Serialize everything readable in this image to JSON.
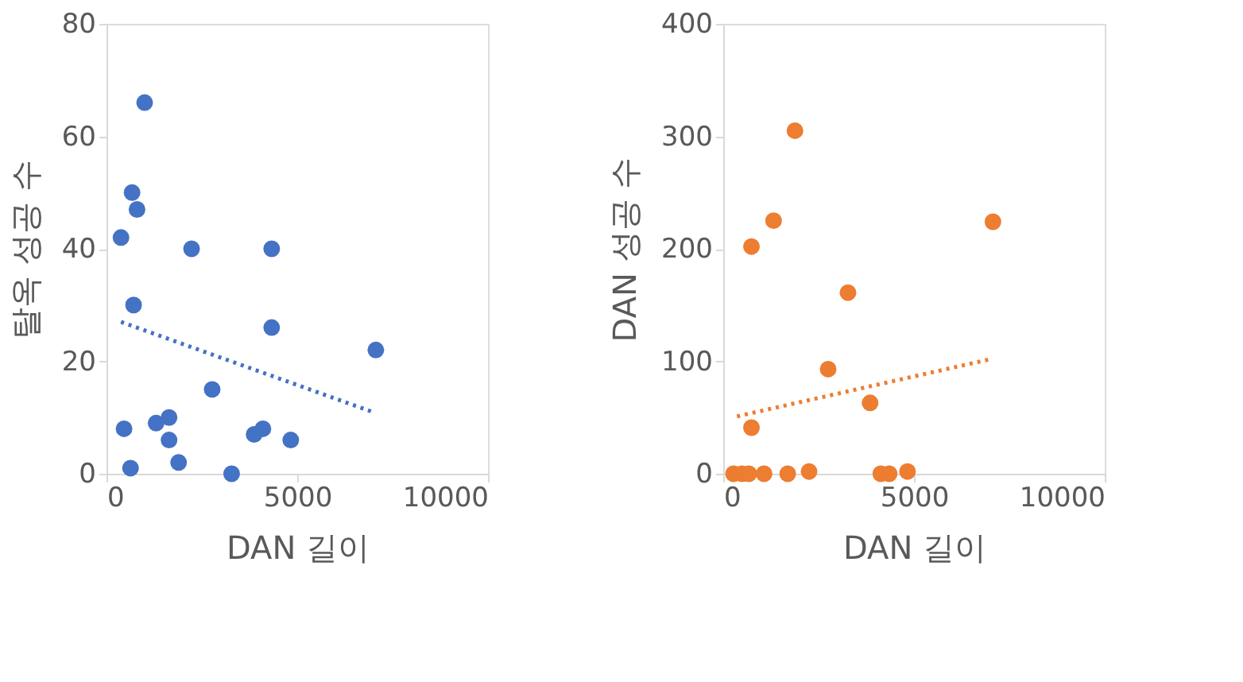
{
  "chart_data": [
    {
      "type": "scatter",
      "xlabel": "DAN 길이",
      "ylabel": "탈옥 성공 수",
      "xlim": [
        0,
        10000
      ],
      "xticks": [
        0,
        5000,
        10000
      ],
      "ylim": [
        0,
        80
      ],
      "yticks": [
        0,
        20,
        40,
        60,
        80
      ],
      "grid": false,
      "series": [
        {
          "color": "#4472c4",
          "x": [
            1000,
            670,
            800,
            380,
            2230,
            4330,
            710,
            4330,
            7060,
            2770,
            1640,
            1300,
            460,
            1640,
            4100,
            3870,
            4830,
            1890,
            630,
            3280
          ],
          "values": [
            66,
            50,
            47,
            42,
            40,
            40,
            30,
            26,
            22,
            15,
            10,
            9,
            8,
            6,
            8,
            7,
            6,
            2,
            1,
            0
          ]
        },
        {
          "type": "line",
          "line_style": "dotted",
          "marker": "none",
          "color": "#4472c4",
          "x": [
            380,
            6970
          ],
          "values": [
            27,
            11
          ]
        }
      ]
    },
    {
      "type": "scatter",
      "xlabel": "DAN 길이",
      "ylabel": "DAN 성공 수",
      "xlim": [
        0,
        10000
      ],
      "xticks": [
        0,
        5000,
        10000
      ],
      "ylim": [
        0,
        400
      ],
      "yticks": [
        0,
        100,
        200,
        300,
        400
      ],
      "grid": false,
      "series": [
        {
          "color": "#ed7d31",
          "x": [
            1880,
            1320,
            740,
            7070,
            3270,
            2750,
            3850,
            740,
            270,
            490,
            670,
            1070,
            1690,
            2250,
            4130,
            4350,
            4830
          ],
          "values": [
            305,
            225,
            202,
            224,
            161,
            93,
            63,
            41,
            0,
            0,
            0,
            0,
            0,
            2,
            0,
            0,
            2
          ]
        },
        {
          "type": "line",
          "line_style": "dotted",
          "marker": "none",
          "color": "#ed7d31",
          "x": [
            360,
            7020
          ],
          "values": [
            51,
            102
          ]
        }
      ]
    }
  ]
}
